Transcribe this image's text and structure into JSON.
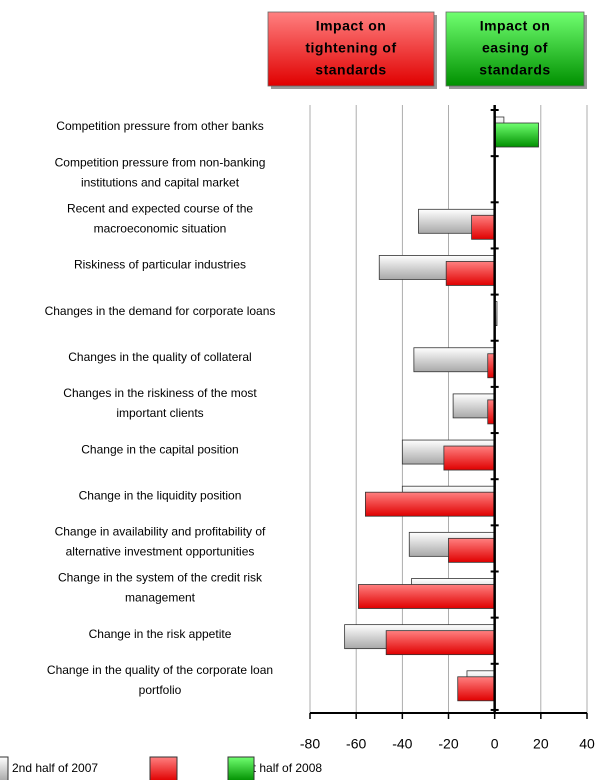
{
  "chart_data": {
    "type": "hbar",
    "annotations": [
      {
        "lines": [
          "Impact on",
          "tightening of",
          "standards"
        ],
        "color": "#ff4040"
      },
      {
        "lines": [
          "Impact on",
          "easing of",
          "standards"
        ],
        "color": "#10c010"
      }
    ],
    "categories": [
      [
        "Competition pressure from other banks"
      ],
      [
        "Competition pressure from non-banking",
        "institutions and capital market"
      ],
      [
        "Recent and expected course of the",
        "macroeconomic situation"
      ],
      [
        "Riskiness of particular industries"
      ],
      [
        "Changes in the demand for corporate loans"
      ],
      [
        "Changes in the quality of collateral"
      ],
      [
        "Changes in the riskiness of the most",
        "important clients"
      ],
      [
        "Change in the capital position"
      ],
      [
        "Change in  the liquidity position"
      ],
      [
        "Change in availability and profitability of",
        "alternative investment opportunities"
      ],
      [
        "Change in the system of the credit risk",
        "management"
      ],
      [
        "Change in the risk appetite"
      ],
      [
        "Change in the quality of the corporate loan",
        "portfolio"
      ]
    ],
    "series": [
      {
        "name": "2nd half of 2007",
        "color": "#d4d4d4",
        "values": [
          4,
          0,
          -33,
          -50,
          1,
          -35,
          -18,
          -40,
          -40,
          -37,
          -36,
          -65,
          -12
        ]
      },
      {
        "name": "1st half of 2008",
        "color": "#ff2020",
        "positive_color": "#10c010",
        "values": [
          19,
          0,
          -10,
          -21,
          0,
          -3,
          -3,
          -22,
          -56,
          -20,
          -59,
          -47,
          -16
        ]
      }
    ],
    "xlim": [
      -80,
      40
    ],
    "xticks": [
      -80,
      -60,
      -40,
      -20,
      0,
      20,
      40
    ],
    "grid": true
  }
}
